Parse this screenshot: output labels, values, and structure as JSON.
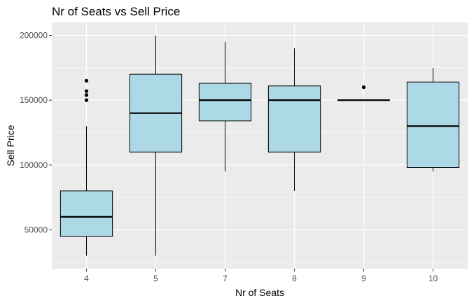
{
  "chart_data": {
    "type": "boxplot",
    "title": "Nr of Seats vs Sell Price",
    "xlabel": "Nr of Seats",
    "ylabel": "Sell Price",
    "categories": [
      "4",
      "5",
      "7",
      "8",
      "9",
      "10"
    ],
    "boxes": [
      {
        "category": "4",
        "min": 30000,
        "q1": 45000,
        "median": 60000,
        "q3": 80000,
        "max": 130000,
        "outliers": [
          150000,
          154000,
          157000,
          165000
        ]
      },
      {
        "category": "5",
        "min": 30000,
        "q1": 110000,
        "median": 140000,
        "q3": 170000,
        "max": 200000,
        "outliers": []
      },
      {
        "category": "7",
        "min": 95000,
        "q1": 134000,
        "median": 150000,
        "q3": 163000,
        "max": 195000,
        "outliers": []
      },
      {
        "category": "8",
        "min": 80000,
        "q1": 110000,
        "median": 150000,
        "q3": 161000,
        "max": 190000,
        "outliers": []
      },
      {
        "category": "9",
        "min": 150000,
        "q1": 150000,
        "median": 150000,
        "q3": 150000,
        "max": 150000,
        "outliers": [
          160000
        ]
      },
      {
        "category": "10",
        "min": 95000,
        "q1": 98000,
        "median": 130000,
        "q3": 164000,
        "max": 175000,
        "outliers": []
      }
    ],
    "yticks": [
      50000,
      100000,
      150000,
      200000
    ],
    "ytick_labels": [
      "50000",
      "100000",
      "150000",
      "200000"
    ],
    "ylim": [
      20000,
      210000
    ],
    "grid": true,
    "colors": {
      "panel_background": "#ebebeb",
      "grid_major": "#ffffff",
      "box_fill": "#add8e6",
      "box_stroke": "#000000",
      "tick_text": "#4d4d4d"
    }
  }
}
